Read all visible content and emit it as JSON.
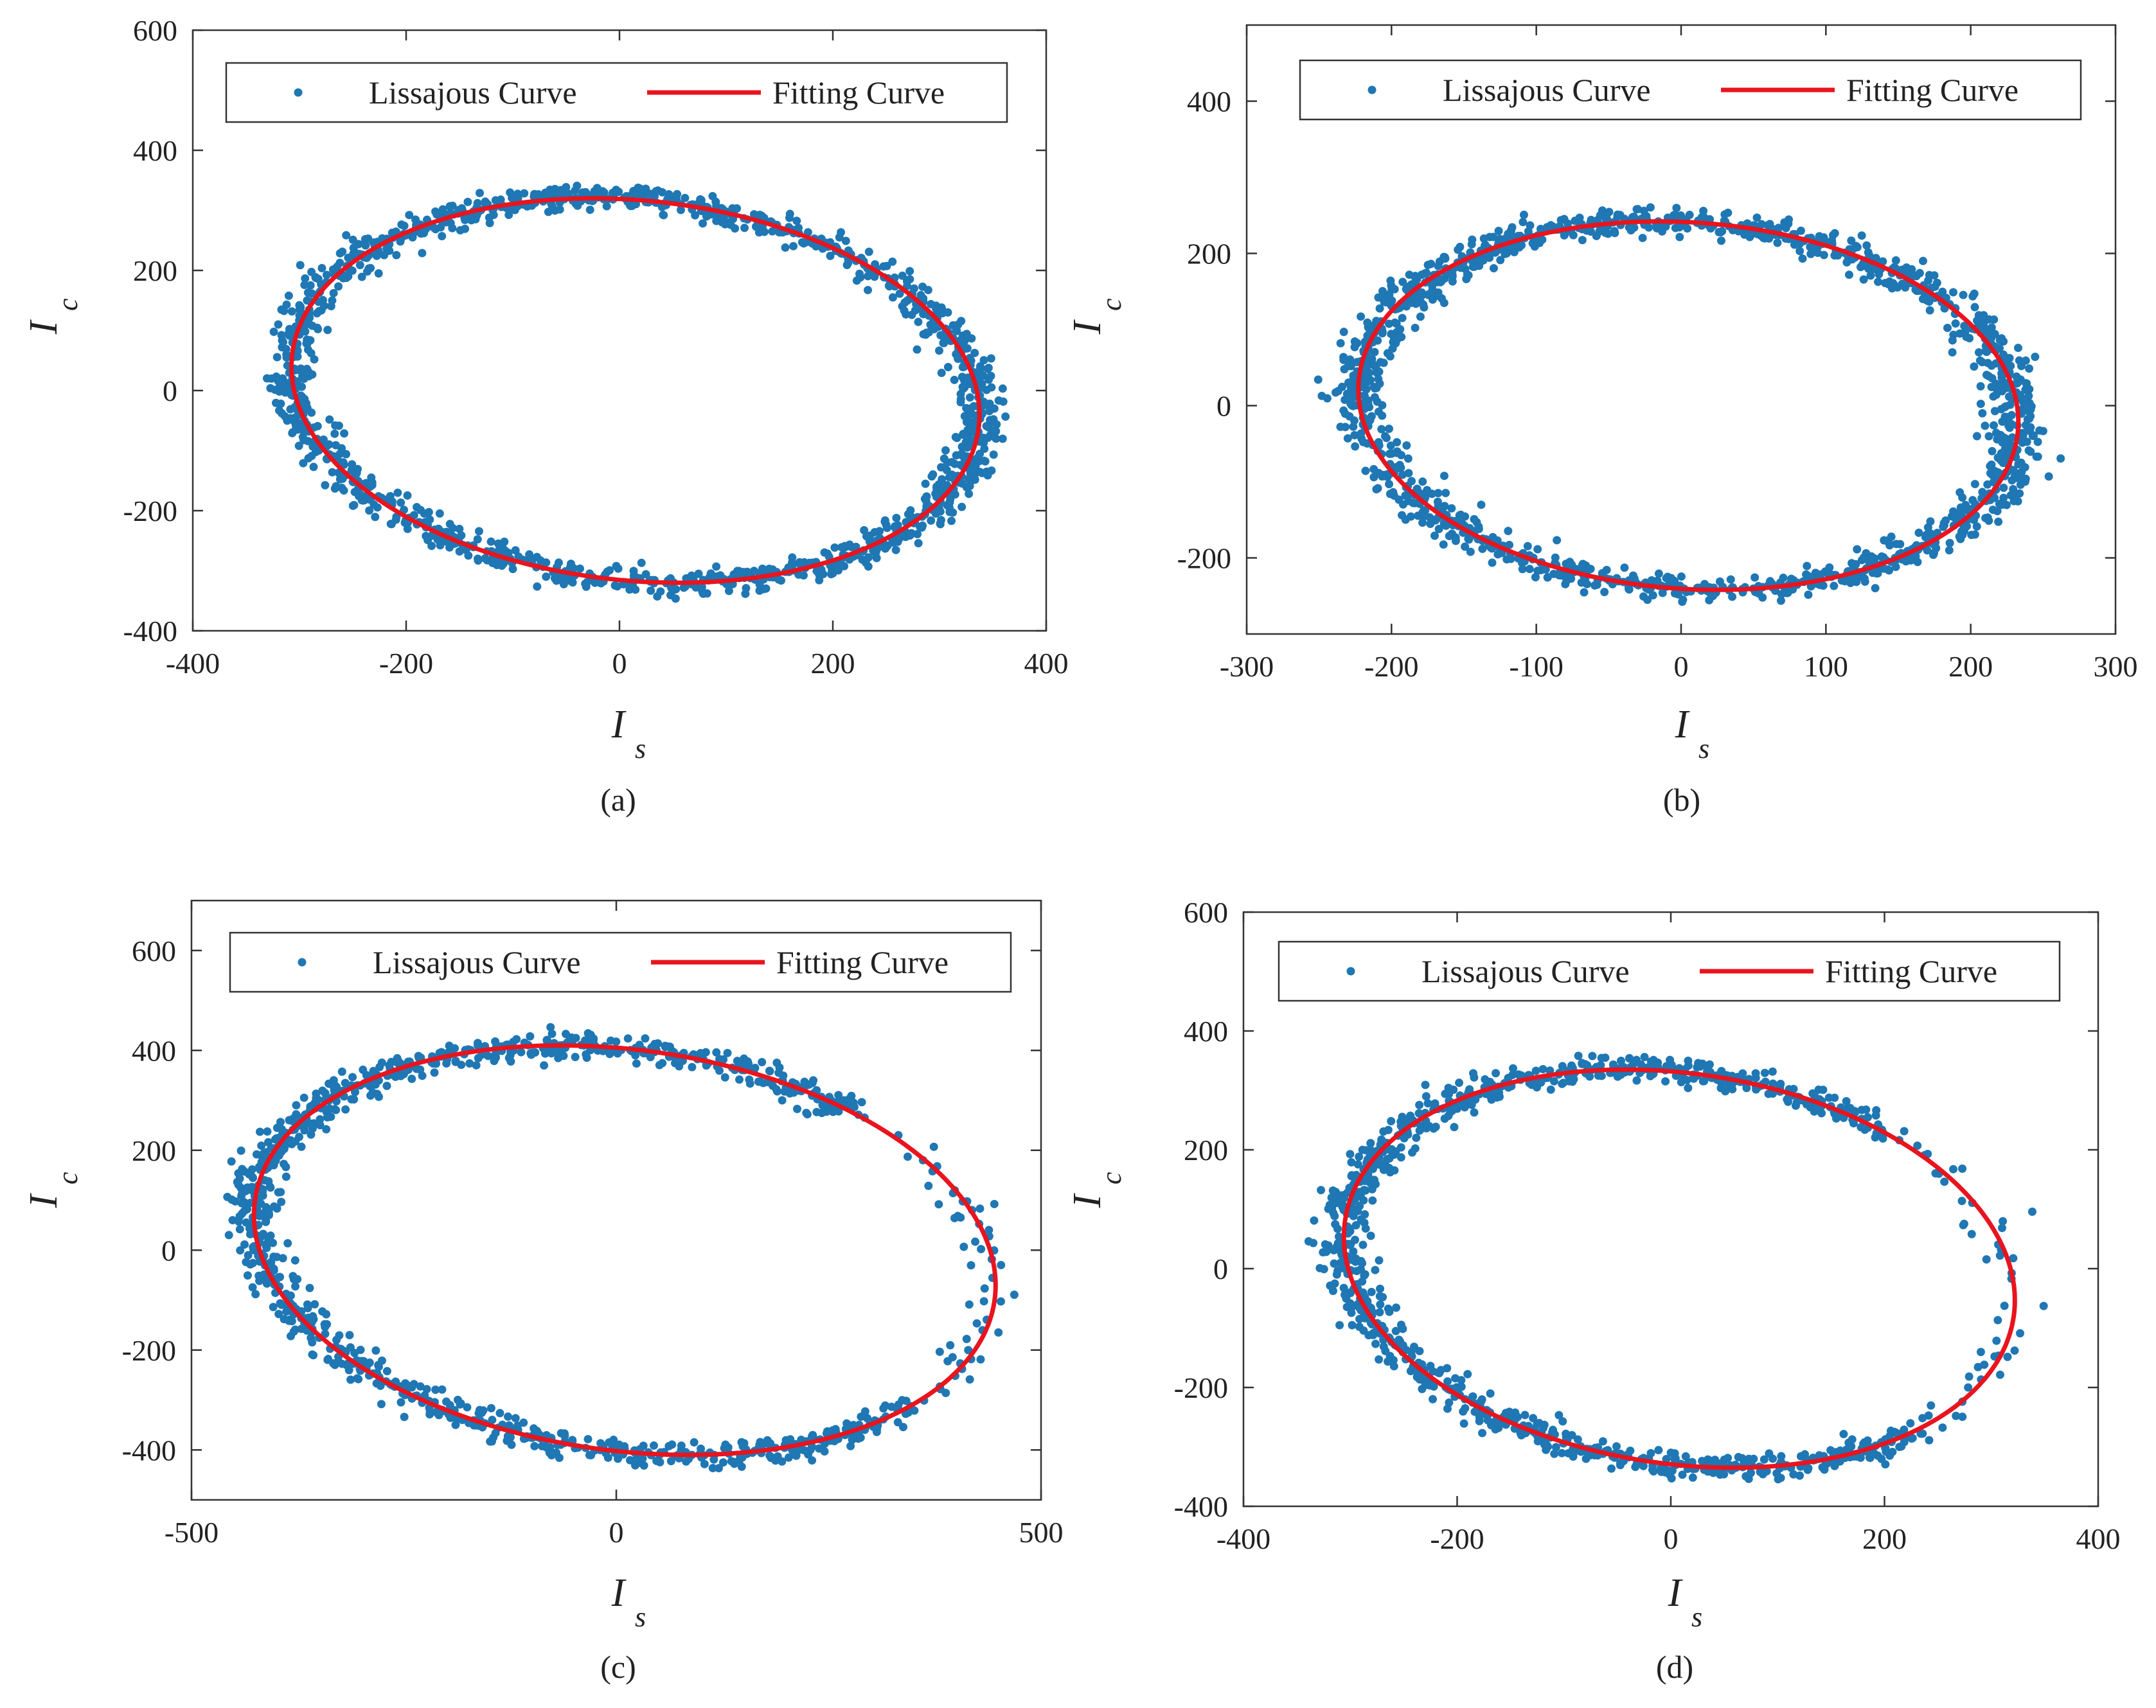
{
  "figure": {
    "colors": {
      "scatter": "#1f77b4",
      "fit": "#e8141e",
      "axis": "#333333"
    }
  },
  "chart_data": [
    {
      "type": "scatter",
      "panel": "a",
      "caption": "(a)",
      "xlabel": "I",
      "xlabel_sub": "s",
      "ylabel": "I",
      "ylabel_sub": "c",
      "xlim": [
        -400,
        400
      ],
      "ylim": [
        -400,
        600
      ],
      "xticks": [
        "-400",
        "-200",
        "0",
        "200",
        "400"
      ],
      "yticks": [
        "-400",
        "-200",
        "0",
        "200",
        "400",
        "600"
      ],
      "legend": [
        "Lissajous Curve",
        "Fitting Curve"
      ],
      "legend_position": "top",
      "series": [
        {
          "name": "Lissajous Curve",
          "kind": "points",
          "ellipse": {
            "cx": 15,
            "cy": 0,
            "ax": 320,
            "ay": 320,
            "skew": -40
          },
          "noise": 12,
          "count": 1400
        },
        {
          "name": "Fitting Curve",
          "kind": "line",
          "ellipse": {
            "cx": 15,
            "cy": 0,
            "ax": 320,
            "ay": 320,
            "skew": -40
          }
        }
      ]
    },
    {
      "type": "scatter",
      "panel": "b",
      "caption": "(b)",
      "xlabel": "I",
      "xlabel_sub": "s",
      "ylabel": "I",
      "ylabel_sub": "c",
      "xlim": [
        -300,
        300
      ],
      "ylim": [
        -300,
        500
      ],
      "xticks": [
        "-300",
        "-200",
        "-100",
        "0",
        "100",
        "200",
        "300"
      ],
      "yticks": [
        "-200",
        "0",
        "200",
        "400"
      ],
      "legend": [
        "Lissajous Curve",
        "Fitting Curve"
      ],
      "legend_position": "top",
      "series": [
        {
          "name": "Lissajous Curve",
          "kind": "points",
          "ellipse": {
            "cx": 5,
            "cy": 0,
            "ax": 227,
            "ay": 242,
            "skew": -20
          },
          "noise": 10,
          "count": 1400
        },
        {
          "name": "Fitting Curve",
          "kind": "line",
          "ellipse": {
            "cx": 5,
            "cy": 0,
            "ax": 227,
            "ay": 242,
            "skew": -20
          }
        }
      ]
    },
    {
      "type": "scatter",
      "panel": "c",
      "caption": "(c)",
      "xlabel": "I",
      "xlabel_sub": "s",
      "ylabel": "I",
      "ylabel_sub": "c",
      "xlim": [
        -500,
        500
      ],
      "ylim": [
        -500,
        700
      ],
      "xticks": [
        "-500",
        "0",
        "500"
      ],
      "yticks": [
        "-400",
        "-200",
        "0",
        "200",
        "400",
        "600"
      ],
      "legend": [
        "Lissajous Curve",
        "Fitting Curve"
      ],
      "legend_position": "top",
      "series": [
        {
          "name": "Lissajous Curve",
          "kind": "points",
          "ellipse": {
            "cx": 10,
            "cy": 0,
            "ax": 430,
            "ay": 410,
            "skew": -75
          },
          "noise": 16,
          "count": 1400,
          "sparse_range": [
            -0.9,
            0.75
          ]
        },
        {
          "name": "Fitting Curve",
          "kind": "line",
          "ellipse": {
            "cx": 10,
            "cy": 0,
            "ax": 430,
            "ay": 410,
            "skew": -75
          }
        }
      ]
    },
    {
      "type": "scatter",
      "panel": "d",
      "caption": "(d)",
      "xlabel": "I",
      "xlabel_sub": "s",
      "ylabel": "I",
      "ylabel_sub": "c",
      "xlim": [
        -400,
        400
      ],
      "ylim": [
        -400,
        600
      ],
      "xticks": [
        "-400",
        "-200",
        "0",
        "200",
        "400"
      ],
      "yticks": [
        "-400",
        "-200",
        "0",
        "200",
        "400",
        "600"
      ],
      "legend": [
        "Lissajous Curve",
        "Fitting Curve"
      ],
      "legend_position": "top",
      "series": [
        {
          "name": "Lissajous Curve",
          "kind": "points",
          "ellipse": {
            "cx": 8,
            "cy": 0,
            "ax": 310,
            "ay": 335,
            "skew": -50
          },
          "noise": 12,
          "count": 1400,
          "sparse_range": [
            -0.95,
            0.85
          ]
        },
        {
          "name": "Fitting Curve",
          "kind": "line",
          "ellipse": {
            "cx": 8,
            "cy": 0,
            "ax": 310,
            "ay": 335,
            "skew": -50
          }
        }
      ]
    }
  ]
}
